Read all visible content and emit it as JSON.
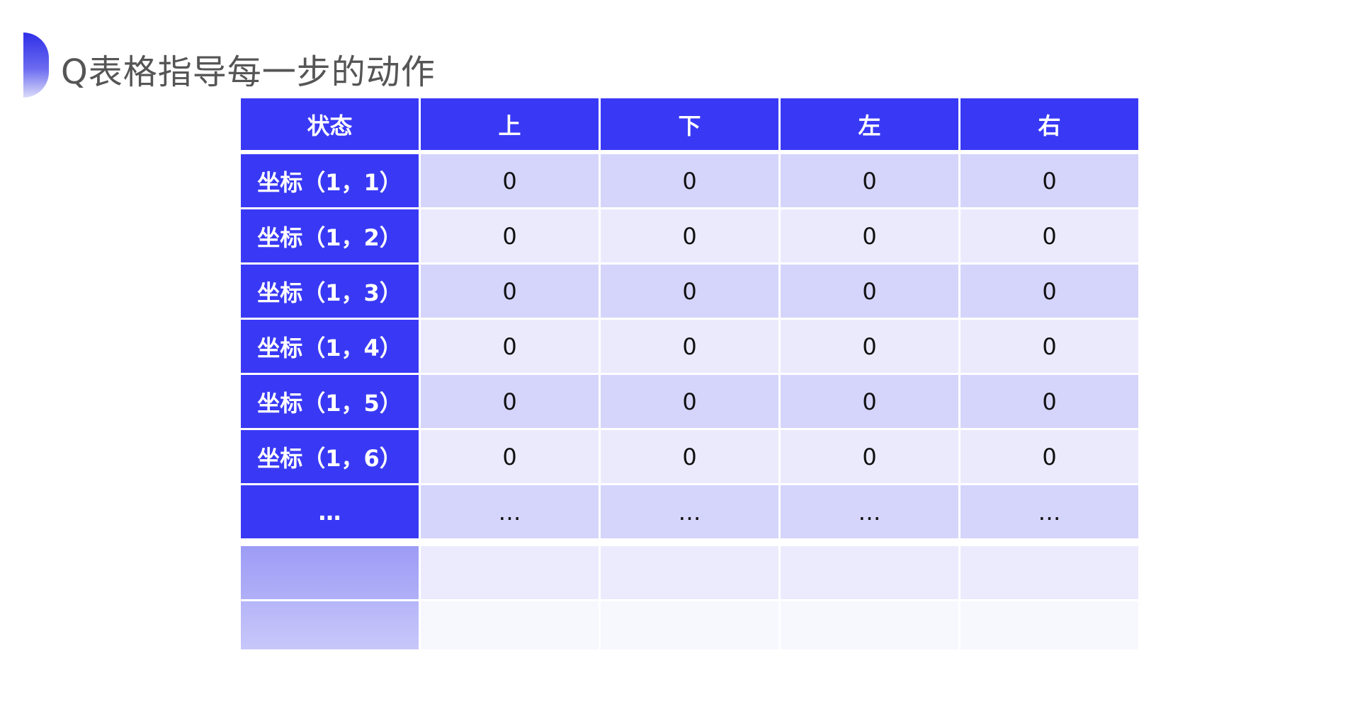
{
  "title": "Q表格指导每一步的动作",
  "colors": {
    "header": "#3939f5",
    "row_odd": "#d5d4fb",
    "row_even": "#ebeafd"
  },
  "table": {
    "headers": [
      "状态",
      "上",
      "下",
      "左",
      "右"
    ],
    "rows": [
      [
        "坐标（1，1）",
        "0",
        "0",
        "0",
        "0"
      ],
      [
        "坐标（1，2）",
        "0",
        "0",
        "0",
        "0"
      ],
      [
        "坐标（1，3）",
        "0",
        "0",
        "0",
        "0"
      ],
      [
        "坐标（1，4）",
        "0",
        "0",
        "0",
        "0"
      ],
      [
        "坐标（1，5）",
        "0",
        "0",
        "0",
        "0"
      ],
      [
        "坐标（1，6）",
        "0",
        "0",
        "0",
        "0"
      ],
      [
        "…",
        "…",
        "…",
        "…",
        "…"
      ]
    ]
  }
}
